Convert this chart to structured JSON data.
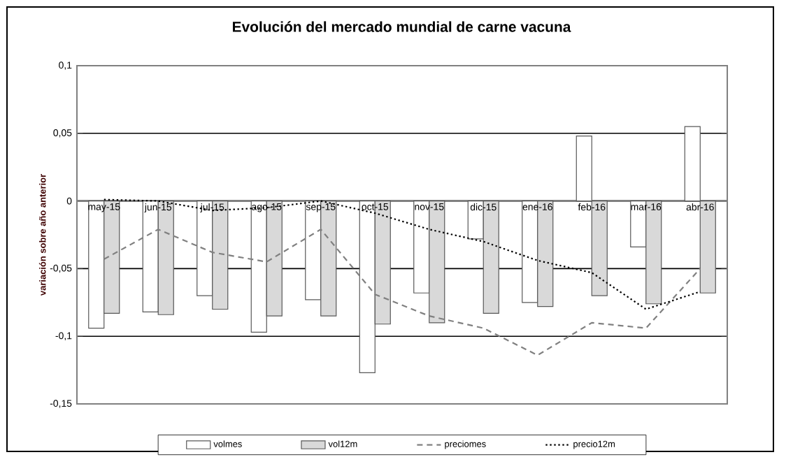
{
  "chart_data": {
    "type": "bar",
    "title": "Evolución del mercado mundial de carne vacuna",
    "ylabel": "variación sobre año anterior",
    "categories": [
      "may-15",
      "jun-15",
      "jul-15",
      "ago-15",
      "sep-15",
      "oct-15",
      "nov-15",
      "dic-15",
      "ene-16",
      "feb-16",
      "mar-16",
      "abr-16"
    ],
    "series": [
      {
        "name": "volmes",
        "color": "#ffffff",
        "values": [
          -0.094,
          -0.082,
          -0.07,
          -0.097,
          -0.073,
          -0.127,
          -0.068,
          -0.028,
          -0.075,
          0.048,
          -0.034,
          0.055
        ]
      },
      {
        "name": "vol12m",
        "color": "#d9d9d9",
        "values": [
          -0.083,
          -0.084,
          -0.08,
          -0.085,
          -0.085,
          -0.091,
          -0.09,
          -0.083,
          -0.078,
          -0.07,
          -0.076,
          -0.068
        ]
      },
      {
        "name": "preciomes",
        "type": "line",
        "color": "#808080",
        "line_style": "dashed",
        "values": [
          -0.043,
          -0.021,
          -0.038,
          -0.045,
          -0.021,
          -0.069,
          -0.085,
          -0.094,
          -0.114,
          -0.09,
          -0.094,
          -0.05
        ]
      },
      {
        "name": "precio12m",
        "type": "line",
        "color": "#000000",
        "line_style": "dotted",
        "values": [
          0.001,
          0.0,
          -0.007,
          -0.005,
          0.0,
          -0.009,
          -0.021,
          -0.03,
          -0.044,
          -0.053,
          -0.08,
          -0.067
        ]
      }
    ],
    "ylim": [
      -0.15,
      0.1
    ],
    "yticks": [
      {
        "value": -0.15,
        "label": "-0,15"
      },
      {
        "value": -0.1,
        "label": "-0,1"
      },
      {
        "value": -0.05,
        "label": "-0,05"
      },
      {
        "value": 0,
        "label": "0"
      },
      {
        "value": 0.05,
        "label": "0,05"
      },
      {
        "value": 0.1,
        "label": "0,1"
      }
    ],
    "grid": "y",
    "legend": "bottom",
    "marker": "none"
  }
}
